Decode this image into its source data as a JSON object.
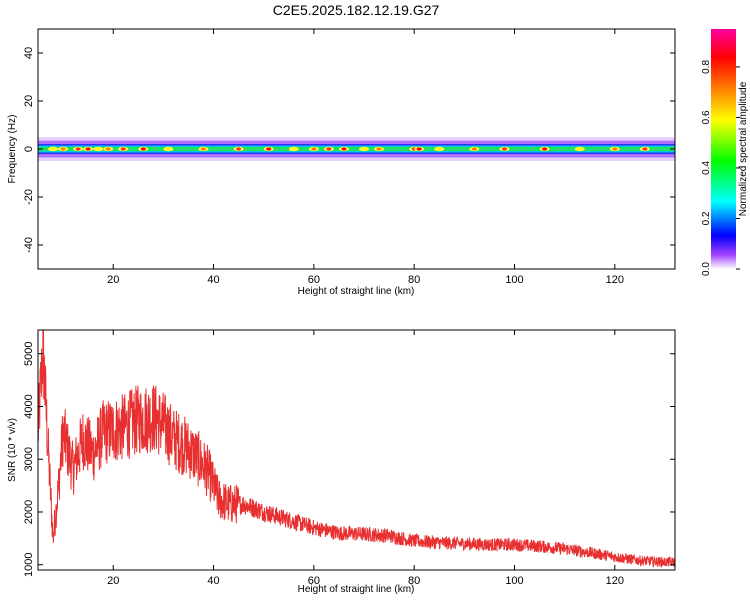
{
  "title": "C2E5.2025.182.12.19.G27",
  "chart_data": [
    {
      "type": "heatmap",
      "xlabel": "Height of straight line (km)",
      "ylabel": "Frequency (Hz)",
      "xlim": [
        5,
        132
      ],
      "ylim": [
        -50,
        50
      ],
      "x_ticks": [
        20,
        40,
        60,
        80,
        100,
        120
      ],
      "y_ticks": [
        40,
        20,
        0,
        -20,
        -40
      ],
      "band": {
        "center_hz": 0,
        "core_halfwidth_hz": 1.5,
        "outer_halfwidth_hz": 5
      },
      "hotspots_km": [
        8,
        10,
        13,
        15,
        17,
        19,
        22,
        26,
        31,
        38,
        45,
        51,
        56,
        60,
        63,
        66,
        70,
        73,
        80,
        81,
        85,
        92,
        98,
        106,
        113,
        120,
        126
      ],
      "colorbar": {
        "label": "Normalized spectral amplitude",
        "range": [
          0,
          0.95
        ],
        "ticks": [
          0.0,
          0.2,
          0.4,
          0.6,
          0.8
        ],
        "tick_labels": [
          "0.0",
          "0.2",
          "0.4",
          "0.6",
          "0.8"
        ],
        "colors": [
          "#ffffff",
          "#a040ff",
          "#0000ff",
          "#00ffff",
          "#00ff00",
          "#ffff00",
          "#ff8000",
          "#ff0000",
          "#ff00a0"
        ]
      }
    },
    {
      "type": "line",
      "xlabel": "Height of straight line (km)",
      "ylabel": "SNR (10 * v/v)",
      "xlim": [
        5,
        132
      ],
      "ylim": [
        900,
        5450
      ],
      "x_ticks": [
        20,
        40,
        60,
        80,
        100,
        120
      ],
      "y_ticks": [
        1000,
        2000,
        3000,
        4000,
        5000
      ],
      "series_color": "#e83030",
      "trend_points": [
        [
          5,
          3500
        ],
        [
          6,
          5100
        ],
        [
          7,
          3200
        ],
        [
          8,
          1500
        ],
        [
          9,
          2400
        ],
        [
          10,
          3500
        ],
        [
          12,
          2800
        ],
        [
          14,
          3400
        ],
        [
          16,
          3100
        ],
        [
          18,
          3500
        ],
        [
          20,
          3550
        ],
        [
          22,
          3600
        ],
        [
          25,
          3750
        ],
        [
          28,
          3800
        ],
        [
          30,
          3650
        ],
        [
          32,
          3400
        ],
        [
          35,
          3200
        ],
        [
          37,
          3000
        ],
        [
          39,
          2750
        ],
        [
          41,
          2250
        ],
        [
          43,
          2150
        ],
        [
          46,
          2150
        ],
        [
          50,
          2000
        ],
        [
          55,
          1850
        ],
        [
          60,
          1700
        ],
        [
          65,
          1600
        ],
        [
          70,
          1580
        ],
        [
          75,
          1550
        ],
        [
          80,
          1450
        ],
        [
          85,
          1420
        ],
        [
          90,
          1400
        ],
        [
          95,
          1380
        ],
        [
          100,
          1380
        ],
        [
          105,
          1350
        ],
        [
          110,
          1300
        ],
        [
          115,
          1230
        ],
        [
          120,
          1150
        ],
        [
          125,
          1080
        ],
        [
          130,
          1050
        ],
        [
          132,
          1050
        ]
      ]
    }
  ]
}
